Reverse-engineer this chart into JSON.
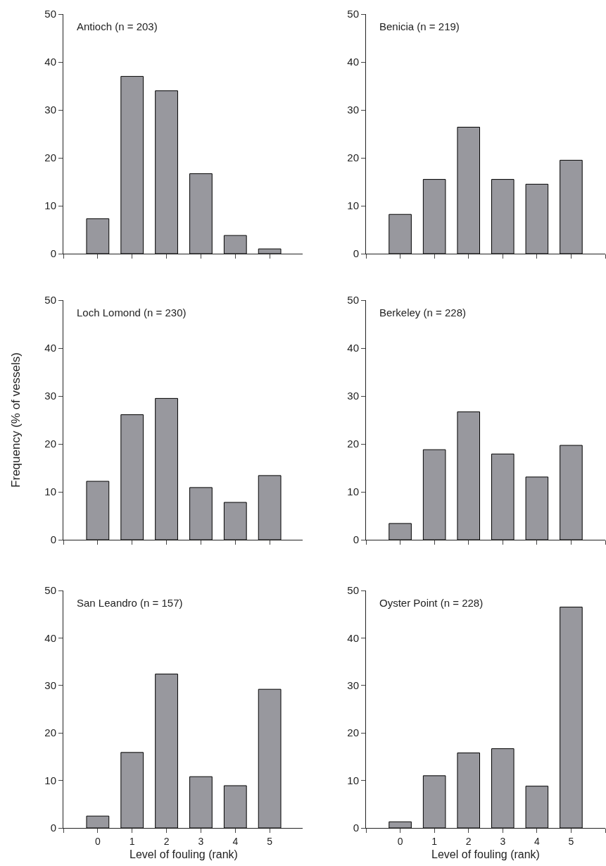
{
  "chart_data": [
    {
      "type": "bar",
      "title": "Antioch (n = 203)",
      "x": [
        0,
        1,
        2,
        3,
        4,
        5
      ],
      "values": [
        7.3,
        37,
        34,
        16.7,
        3.8,
        1
      ],
      "color": "#98989e",
      "xlim": [
        -1,
        6
      ],
      "xticks": [
        {
          "value": -1,
          "label": null
        },
        {
          "value": 0,
          "label": null
        },
        {
          "value": 1,
          "label": null
        },
        {
          "value": 2,
          "label": null
        },
        {
          "value": 3,
          "label": null
        },
        {
          "value": 4,
          "label": null
        },
        {
          "value": 5,
          "label": null
        },
        {
          "value": 6,
          "label": null
        }
      ],
      "ylim": [
        0,
        50
      ],
      "yticks": [
        0,
        10,
        20,
        30,
        40,
        50
      ],
      "tick_labels": "y"
    },
    {
      "type": "bar",
      "title": "Benicia (n = 219)",
      "x": [
        0,
        1,
        2,
        3,
        4,
        5
      ],
      "values": [
        8.2,
        15.5,
        26.4,
        15.5,
        14.5,
        19.5
      ],
      "color": "#98989e",
      "xlim": [
        -1,
        6
      ],
      "xticks": [
        {
          "value": -1,
          "label": null
        },
        {
          "value": 0,
          "label": null
        },
        {
          "value": 1,
          "label": null
        },
        {
          "value": 2,
          "label": null
        },
        {
          "value": 3,
          "label": null
        },
        {
          "value": 4,
          "label": null
        },
        {
          "value": 5,
          "label": null
        },
        {
          "value": 6,
          "label": null
        }
      ],
      "ylim": [
        0,
        50
      ],
      "yticks": [
        0,
        10,
        20,
        30,
        40,
        50
      ],
      "tick_labels": "y"
    },
    {
      "type": "bar",
      "title": "Loch Lomond (n = 230)",
      "ylabel": "Frequency (% of vessels)",
      "x": [
        0,
        1,
        2,
        3,
        4,
        5
      ],
      "values": [
        12.2,
        26.1,
        29.5,
        10.9,
        7.8,
        13.4
      ],
      "color": "#98989e",
      "xlim": [
        -1,
        6
      ],
      "xticks": [
        {
          "value": -1,
          "label": null
        },
        {
          "value": 0,
          "label": null
        },
        {
          "value": 1,
          "label": null
        },
        {
          "value": 2,
          "label": null
        },
        {
          "value": 3,
          "label": null
        },
        {
          "value": 4,
          "label": null
        },
        {
          "value": 5,
          "label": null
        },
        {
          "value": 6,
          "label": null
        }
      ],
      "ylim": [
        0,
        50
      ],
      "yticks": [
        0,
        10,
        20,
        30,
        40,
        50
      ],
      "tick_labels": "y"
    },
    {
      "type": "bar",
      "title": "Berkeley (n = 228)",
      "x": [
        0,
        1,
        2,
        3,
        4,
        5
      ],
      "values": [
        3.4,
        18.8,
        26.7,
        17.9,
        13.1,
        19.7
      ],
      "color": "#98989e",
      "xlim": [
        -1,
        6
      ],
      "xticks": [
        {
          "value": -1,
          "label": null
        },
        {
          "value": 0,
          "label": null
        },
        {
          "value": 1,
          "label": null
        },
        {
          "value": 2,
          "label": null
        },
        {
          "value": 3,
          "label": null
        },
        {
          "value": 4,
          "label": null
        },
        {
          "value": 5,
          "label": null
        },
        {
          "value": 6,
          "label": null
        }
      ],
      "ylim": [
        0,
        50
      ],
      "yticks": [
        0,
        10,
        20,
        30,
        40,
        50
      ],
      "tick_labels": "y"
    },
    {
      "type": "bar",
      "title": "San Leandro (n = 157)",
      "xlabel": "Level of fouling (rank)",
      "x": [
        0,
        1,
        2,
        3,
        4,
        5
      ],
      "values": [
        2.5,
        15.9,
        32.4,
        10.8,
        8.9,
        29.2
      ],
      "color": "#98989e",
      "xlim": [
        -1,
        6
      ],
      "xticks": [
        {
          "value": -1,
          "label": null
        },
        0,
        1,
        2,
        3,
        4,
        5,
        {
          "value": 6,
          "label": null
        }
      ],
      "ylim": [
        0,
        50
      ],
      "yticks": [
        0,
        10,
        20,
        30,
        40,
        50
      ]
    },
    {
      "type": "bar",
      "title": "Oyster Point (n = 228)",
      "xlabel": "Level of fouling (rank)",
      "x": [
        0,
        1,
        2,
        3,
        4,
        5
      ],
      "values": [
        1.3,
        11,
        15.8,
        16.7,
        8.8,
        46.5
      ],
      "color": "#98989e",
      "xlim": [
        -1,
        6
      ],
      "xticks": [
        {
          "value": -1,
          "label": null
        },
        0,
        1,
        2,
        3,
        4,
        5,
        {
          "value": 6,
          "label": null
        }
      ],
      "ylim": [
        0,
        50
      ],
      "yticks": [
        0,
        10,
        20,
        30,
        40,
        50
      ]
    }
  ]
}
